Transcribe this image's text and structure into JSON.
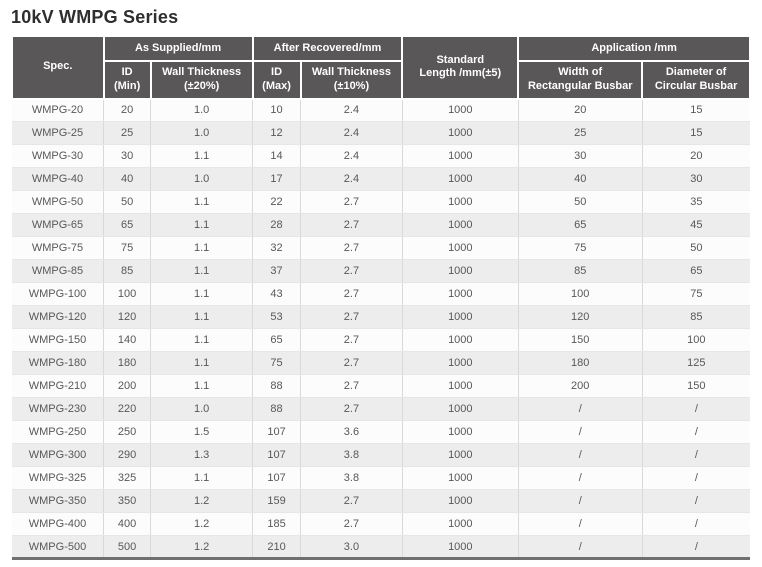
{
  "page_title": "10kV WMPG Series",
  "colors": {
    "header_bg": "#595757",
    "header_text": "#ffffff",
    "title_text": "#2e2e2e",
    "body_text": "#595757",
    "row_bg": "#fcfcfc",
    "row_alt_bg": "#ededed",
    "grid_vertical": "#d9d9d9",
    "grid_horizontal": "#e6e6e6",
    "bottom_border": "#6f6f6f"
  },
  "table": {
    "header": {
      "spec": "Spec.",
      "as_supplied_group": "As Supplied/mm",
      "after_recovered_group": "After Recovered/mm",
      "standard_length": "Standard\nLength /mm(±5)",
      "application_group": "Application /mm",
      "id_min": "ID\n(Min)",
      "wall_thickness_20": "Wall Thickness\n(±20%)",
      "id_max": "ID\n(Max)",
      "wall_thickness_10": "Wall Thickness\n(±10%)",
      "width_rectangular": "Width of\nRectangular Busbar",
      "diameter_circular": "Diameter of\nCircular Busbar"
    },
    "columns": [
      "Spec.",
      "ID (Min)",
      "Wall Thickness (±20%)",
      "ID (Max)",
      "Wall Thickness (±10%)",
      "Standard Length /mm(±5)",
      "Width of Rectangular Busbar",
      "Diameter of Circular Busbar"
    ],
    "rows": [
      [
        "WMPG-20",
        "20",
        "1.0",
        "10",
        "2.4",
        "1000",
        "20",
        "15"
      ],
      [
        "WMPG-25",
        "25",
        "1.0",
        "12",
        "2.4",
        "1000",
        "25",
        "15"
      ],
      [
        "WMPG-30",
        "30",
        "1.1",
        "14",
        "2.4",
        "1000",
        "30",
        "20"
      ],
      [
        "WMPG-40",
        "40",
        "1.0",
        "17",
        "2.4",
        "1000",
        "40",
        "30"
      ],
      [
        "WMPG-50",
        "50",
        "1.1",
        "22",
        "2.7",
        "1000",
        "50",
        "35"
      ],
      [
        "WMPG-65",
        "65",
        "1.1",
        "28",
        "2.7",
        "1000",
        "65",
        "45"
      ],
      [
        "WMPG-75",
        "75",
        "1.1",
        "32",
        "2.7",
        "1000",
        "75",
        "50"
      ],
      [
        "WMPG-85",
        "85",
        "1.1",
        "37",
        "2.7",
        "1000",
        "85",
        "65"
      ],
      [
        "WMPG-100",
        "100",
        "1.1",
        "43",
        "2.7",
        "1000",
        "100",
        "75"
      ],
      [
        "WMPG-120",
        "120",
        "1.1",
        "53",
        "2.7",
        "1000",
        "120",
        "85"
      ],
      [
        "WMPG-150",
        "140",
        "1.1",
        "65",
        "2.7",
        "1000",
        "150",
        "100"
      ],
      [
        "WMPG-180",
        "180",
        "1.1",
        "75",
        "2.7",
        "1000",
        "180",
        "125"
      ],
      [
        "WMPG-210",
        "200",
        "1.1",
        "88",
        "2.7",
        "1000",
        "200",
        "150"
      ],
      [
        "WMPG-230",
        "220",
        "1.0",
        "88",
        "2.7",
        "1000",
        "/",
        "/"
      ],
      [
        "WMPG-250",
        "250",
        "1.5",
        "107",
        "3.6",
        "1000",
        "/",
        "/"
      ],
      [
        "WMPG-300",
        "290",
        "1.3",
        "107",
        "3.8",
        "1000",
        "/",
        "/"
      ],
      [
        "WMPG-325",
        "325",
        "1.1",
        "107",
        "3.8",
        "1000",
        "/",
        "/"
      ],
      [
        "WMPG-350",
        "350",
        "1.2",
        "159",
        "2.7",
        "1000",
        "/",
        "/"
      ],
      [
        "WMPG-400",
        "400",
        "1.2",
        "185",
        "2.7",
        "1000",
        "/",
        "/"
      ],
      [
        "WMPG-500",
        "500",
        "1.2",
        "210",
        "3.0",
        "1000",
        "/",
        "/"
      ]
    ]
  }
}
